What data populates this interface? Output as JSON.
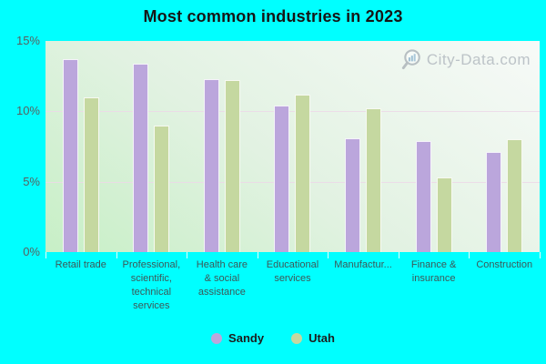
{
  "title": "Most common industries in 2023",
  "watermark": {
    "text": "City-Data.com",
    "icon": "magnifier-chart-icon"
  },
  "colors": {
    "background": "#00ffff",
    "sandy": "#bba6dc",
    "utah": "#c5d8a0",
    "plot_gradient_start": "#c7efc6",
    "plot_gradient_end": "#f7faf8"
  },
  "chart_data": {
    "type": "bar",
    "title": "Most common industries in 2023",
    "categories": [
      "Retail trade",
      "Professional, scientific, technical services",
      "Health care & social assistance",
      "Educational services",
      "Manufactur...",
      "Finance & insurance",
      "Construction"
    ],
    "category_labels_display": [
      "Retail trade",
      "Professional,\nscientific,\ntechnical\nservices",
      "Health care\n& social\nassistance",
      "Educational\nservices",
      "Manufactur...",
      "Finance &\ninsurance",
      "Construction"
    ],
    "series": [
      {
        "name": "Sandy",
        "color": "#bba6dc",
        "values": [
          13.7,
          13.4,
          12.3,
          10.4,
          8.1,
          7.9,
          7.1
        ]
      },
      {
        "name": "Utah",
        "color": "#c5d8a0",
        "values": [
          11.0,
          9.0,
          12.2,
          11.2,
          10.2,
          5.3,
          8.0
        ]
      }
    ],
    "xlabel": "",
    "ylabel": "",
    "ylim": [
      0,
      15
    ],
    "yticks": [
      {
        "value": 0,
        "label": "0%"
      },
      {
        "value": 5,
        "label": "5%"
      },
      {
        "value": 10,
        "label": "10%"
      },
      {
        "value": 15,
        "label": "15%"
      }
    ],
    "gridlines_at": [
      5,
      10
    ],
    "grid": true,
    "legend_position": "bottom"
  }
}
